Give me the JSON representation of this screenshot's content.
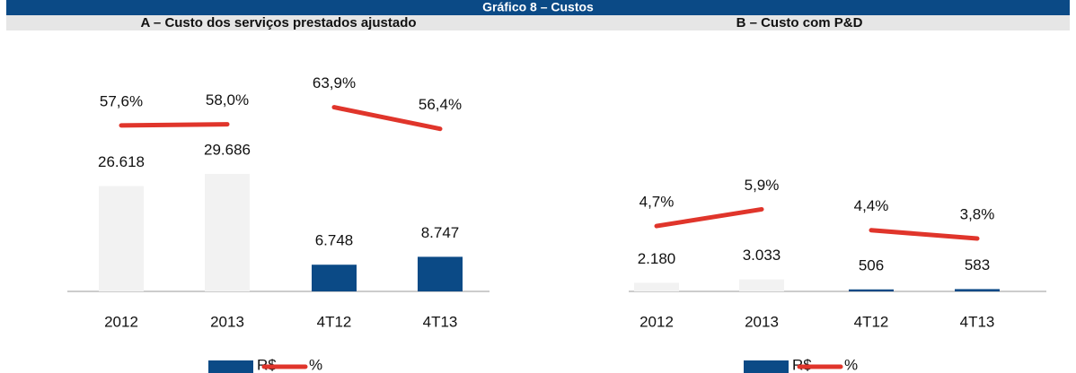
{
  "title": "Gráfico 8 –  Custos",
  "chart_data": [
    {
      "type": "bar",
      "title": "A – Custo dos serviços prestados ajustado",
      "categories": [
        "2012",
        "2013",
        "4T12",
        "4T13"
      ],
      "ylim": [
        0,
        51000
      ],
      "y2lim": [
        0,
        70
      ],
      "series": [
        {
          "name": "R$",
          "color": "#0b4a86",
          "colors": [
            "#f2f2f2",
            "#f2f2f2",
            "#0b4a86",
            "#0b4a86"
          ],
          "values": [
            26618,
            29686,
            6748,
            8747
          ],
          "value_labels": [
            "26.618",
            "29.686",
            "6.748",
            "8.747"
          ]
        },
        {
          "name": "%",
          "color": "#e0352b",
          "axis": "y2",
          "values": [
            57.6,
            58.0,
            63.9,
            56.4
          ],
          "value_labels": [
            "57,6%",
            "58,0%",
            "63,9%",
            "56,4%"
          ]
        }
      ]
    },
    {
      "type": "bar",
      "title": "B – Custo com P&D",
      "categories": [
        "2012",
        "2013",
        "4T12",
        "4T13"
      ],
      "ylim": [
        0,
        51000
      ],
      "y2lim": [
        0,
        14.5
      ],
      "series": [
        {
          "name": "R$",
          "color": "#0b4a86",
          "colors": [
            "#f2f2f2",
            "#f2f2f2",
            "#0b4a86",
            "#0b4a86"
          ],
          "values": [
            2180,
            3033,
            506,
            583
          ],
          "value_labels": [
            "2.180",
            "3.033",
            "506",
            "583"
          ]
        },
        {
          "name": "%",
          "color": "#e0352b",
          "axis": "y2",
          "values": [
            4.7,
            5.9,
            4.4,
            3.8
          ],
          "value_labels": [
            "4,7%",
            "5,9%",
            "4,4%",
            "3,8%"
          ]
        }
      ]
    }
  ]
}
